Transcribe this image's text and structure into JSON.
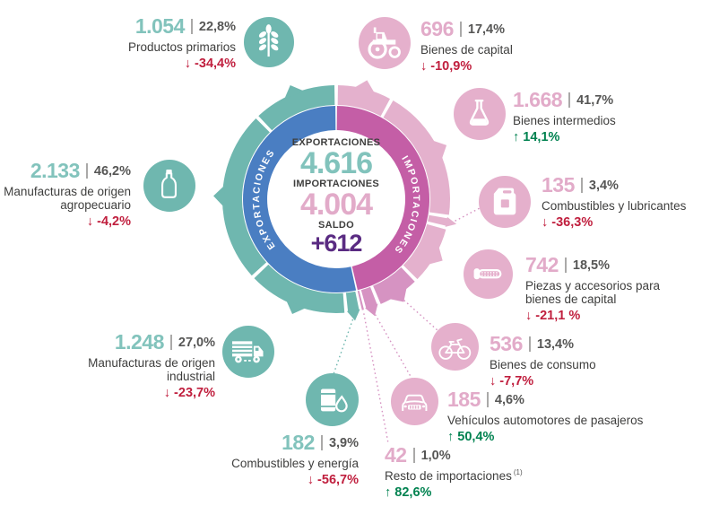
{
  "colors": {
    "teal": "#6fb7af",
    "teal_text": "#82c3bc",
    "pink": "#e4b1cd",
    "pink_dark": "#d693c2",
    "pink_icon": "#e5b0cc",
    "pink_text": "#e2abc9",
    "blue": "#4a7ec2",
    "magenta": "#c45ea6",
    "red": "#c01f3e",
    "green": "#008250",
    "purple": "#5a2b82",
    "dark": "#3e3e3d",
    "gray": "#565655"
  },
  "center": {
    "exports_label": "EXPORTACIONES",
    "exports_value": "4.616",
    "imports_label": "IMPORTACIONES",
    "imports_value": "4.004",
    "saldo_label": "SALDO",
    "saldo_value": "+612"
  },
  "ring_labels": {
    "exports": "EXPORTACIONES",
    "imports": "IMPORTACIONES"
  },
  "chart_data": {
    "type": "pie",
    "subtype": "double-ring donut, inner ring = export/import totals, outer ring = category shares",
    "totals": {
      "exportaciones": 4616,
      "importaciones": 4004,
      "saldo": 612
    },
    "series": [
      {
        "label": "Productos primarios",
        "side": "export",
        "value_label": "1.054",
        "value": 1054,
        "pct": 22.8,
        "pct_label": "22,8%",
        "arrow": "↓",
        "trend": "down",
        "delta_label": "-34,4%",
        "icon": "wheat"
      },
      {
        "label": "Manufacturas de origen agropecuario",
        "side": "export",
        "value_label": "2.133",
        "value": 2133,
        "pct": 46.2,
        "pct_label": "46,2%",
        "arrow": "↓",
        "trend": "down",
        "delta_label": "-4,2%",
        "icon": "bottle"
      },
      {
        "label": "Manufacturas de origen industrial",
        "side": "export",
        "value_label": "1.248",
        "value": 1248,
        "pct": 27.0,
        "pct_label": "27,0%",
        "arrow": "↓",
        "trend": "down",
        "delta_label": "-23,7%",
        "icon": "truck"
      },
      {
        "label": "Combustibles y energía",
        "side": "export",
        "value_label": "182",
        "value": 182,
        "pct": 3.9,
        "pct_label": "3,9%",
        "arrow": "↓",
        "trend": "down",
        "delta_label": "-56,7%",
        "icon": "oil-barrel"
      },
      {
        "label": "Bienes de capital",
        "side": "import",
        "value_label": "696",
        "value": 696,
        "pct": 17.4,
        "pct_label": "17,4%",
        "arrow": "↓",
        "trend": "down",
        "delta_label": "-10,9%",
        "icon": "tractor"
      },
      {
        "label": "Bienes intermedios",
        "side": "import",
        "value_label": "1.668",
        "value": 1668,
        "pct": 41.7,
        "pct_label": "41,7%",
        "arrow": "↑",
        "trend": "up",
        "delta_label": "14,1%",
        "icon": "flask"
      },
      {
        "label": "Combustibles y lubricantes",
        "side": "import",
        "value_label": "135",
        "value": 135,
        "pct": 3.4,
        "pct_label": "3,4%",
        "arrow": "↓",
        "trend": "down",
        "delta_label": "-36,3%",
        "icon": "jerrycan"
      },
      {
        "label": "Piezas y accesorios para bienes de capital",
        "side": "import",
        "value_label": "742",
        "value": 742,
        "pct": 18.5,
        "pct_label": "18,5%",
        "arrow": "↓",
        "trend": "down",
        "delta_label": "-21,1 %",
        "icon": "screw"
      },
      {
        "label": "Bienes de consumo",
        "side": "import",
        "value_label": "536",
        "value": 536,
        "pct": 13.4,
        "pct_label": "13,4%",
        "arrow": "↓",
        "trend": "down",
        "delta_label": "-7,7%",
        "icon": "bicycle",
        "shade": "dark"
      },
      {
        "label": "Vehículos automotores de pasajeros",
        "side": "import",
        "value_label": "185",
        "value": 185,
        "pct": 4.6,
        "pct_label": "4,6%",
        "arrow": "↑",
        "trend": "up",
        "delta_label": "50,4%",
        "icon": "car",
        "shade": "dark"
      },
      {
        "label": "Resto de importaciones",
        "footnote": "(1)",
        "side": "import",
        "value_label": "42",
        "value": 42,
        "pct": 1.0,
        "pct_label": "1,0%",
        "arrow": "↑",
        "trend": "up",
        "delta_label": "82,6%",
        "icon": null,
        "shade": "dark"
      }
    ]
  }
}
